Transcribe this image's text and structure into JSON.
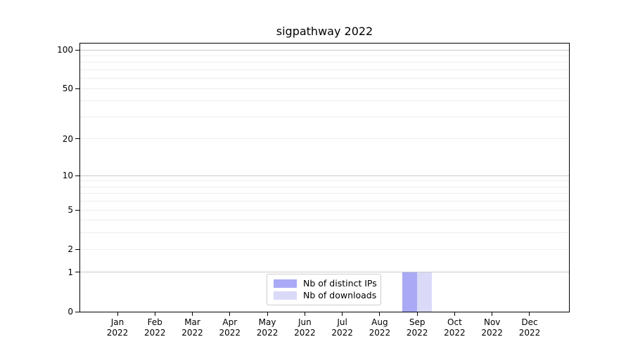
{
  "figure": {
    "title": "sigpathway 2022",
    "legend": [
      {
        "label": "Nb of distinct IPs",
        "color": "#a9a9f5"
      },
      {
        "label": "Nb of downloads",
        "color": "#dadaf8"
      }
    ]
  },
  "chart_data": {
    "type": "bar",
    "title": "sigpathway 2022",
    "categories": [
      "Jan 2022",
      "Feb 2022",
      "Mar 2022",
      "Apr 2022",
      "May 2022",
      "Jun 2022",
      "Jul 2022",
      "Aug 2022",
      "Sep 2022",
      "Oct 2022",
      "Nov 2022",
      "Dec 2022"
    ],
    "series": [
      {
        "name": "Nb of distinct IPs",
        "color": "#a9a9f5",
        "values": [
          0,
          0,
          0,
          0,
          0,
          0,
          0,
          0,
          1,
          0,
          0,
          0
        ]
      },
      {
        "name": "Nb of downloads",
        "color": "#dadaf8",
        "values": [
          0,
          0,
          0,
          0,
          0,
          0,
          0,
          0,
          1,
          0,
          0,
          0
        ]
      }
    ],
    "xlabel": "",
    "ylabel": "",
    "yscale": "log1p",
    "ylim": [
      0,
      112
    ],
    "yticks": [
      0,
      1,
      2,
      5,
      10,
      20,
      50,
      100
    ],
    "major_gridlines": [
      1,
      10,
      100
    ],
    "minor_gridlines": [
      2,
      3,
      4,
      5,
      6,
      7,
      8,
      9,
      20,
      30,
      40,
      50,
      60,
      70,
      80,
      90
    ],
    "grid": "horizontal",
    "legend_position": "lower center inside"
  }
}
